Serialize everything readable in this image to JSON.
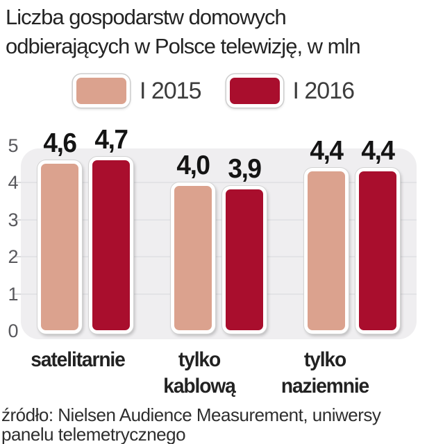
{
  "title": {
    "line1": "Liczba gospodarstw domowych",
    "line2": "odbierających w Polsce telewizję, w mln"
  },
  "legend": {
    "items": [
      {
        "label": "I 2015",
        "color": "#dba28e"
      },
      {
        "label": "I 2016",
        "color": "#a90e2d"
      }
    ]
  },
  "chart_data": {
    "type": "bar",
    "title": "Liczba gospodarstw domowych odbierających w Polsce telewizję, w mln",
    "unit": "mln",
    "categories": [
      "satelitarnie",
      "tylko kablową",
      "tylko naziemnie"
    ],
    "category_label_lines": [
      [
        "satelitarnie"
      ],
      [
        "tylko",
        "kablową"
      ],
      [
        "tylko",
        "naziemnie"
      ]
    ],
    "series": [
      {
        "name": "I 2015",
        "color": "#dba28e",
        "values": [
          4.6,
          4.0,
          4.4
        ]
      },
      {
        "name": "I 2016",
        "color": "#a90e2d",
        "values": [
          4.7,
          3.9,
          4.4
        ]
      }
    ],
    "value_labels": [
      [
        "4,6",
        "4,7"
      ],
      [
        "4,0",
        "3,9"
      ],
      [
        "4,4",
        "4,4"
      ]
    ],
    "ylim": [
      0,
      5
    ],
    "yticks": [
      0,
      1,
      2,
      3,
      4,
      5
    ],
    "grid": true,
    "legend_position": "top",
    "plot_bg": "#efeef0",
    "grid_color": "#e3e3e6",
    "tick_color": "#d9d9db"
  },
  "source": {
    "line1": "źródło: Nielsen Audience Measurement, uniwersy",
    "line2": "panelu telemetrycznego"
  }
}
